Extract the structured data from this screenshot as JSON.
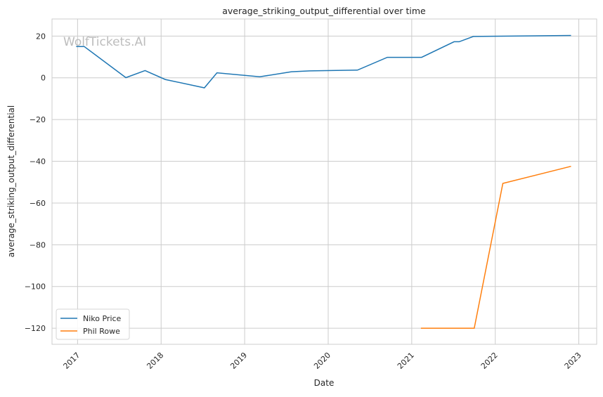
{
  "chart_data": {
    "type": "line",
    "title": "average_striking_output_differential over time",
    "xlabel": "Date",
    "ylabel": "average_striking_output_differential",
    "watermark": "WolfTickets.AI",
    "xlim": [
      "2016-09-11",
      "2023-03-20"
    ],
    "ylim": [
      -127.7,
      28.2
    ],
    "x_ticks": [
      "2017",
      "2018",
      "2019",
      "2020",
      "2021",
      "2022",
      "2023"
    ],
    "y_ticks": [
      20,
      0,
      -20,
      -40,
      -60,
      -80,
      -100,
      -120
    ],
    "y_tick_labels": [
      "20",
      "0",
      "−20",
      "−40",
      "−60",
      "−80",
      "−100",
      "−120"
    ],
    "grid": true,
    "legend_position": "lower-left",
    "series": [
      {
        "name": "Niko Price",
        "color": "#1f77b4",
        "x": [
          "2016-12-26",
          "2017-01-30",
          "2017-07-31",
          "2017-10-23",
          "2018-01-19",
          "2018-07-09",
          "2018-09-02",
          "2019-03-08",
          "2019-07-24",
          "2019-10-12",
          "2020-05-08",
          "2020-09-16",
          "2021-02-13",
          "2021-07-05",
          "2021-07-27",
          "2021-09-27",
          "2022-11-28"
        ],
        "y": [
          15.0,
          15.0,
          0.1,
          3.5,
          -0.8,
          -4.8,
          2.4,
          0.5,
          2.9,
          3.3,
          3.7,
          9.8,
          9.8,
          17.3,
          17.3,
          19.8,
          20.3
        ]
      },
      {
        "name": "Phil Rowe",
        "color": "#ff7f0e",
        "x": [
          "2021-02-10",
          "2021-10-01",
          "2022-02-03",
          "2022-11-28"
        ],
        "y": [
          -120,
          -120,
          -50.6,
          -42.4
        ]
      }
    ]
  }
}
